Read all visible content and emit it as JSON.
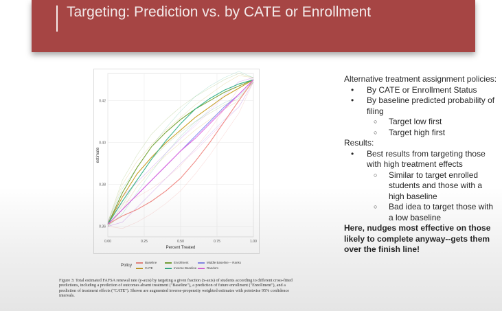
{
  "slide": {
    "title": "Targeting: Prediction vs. by CATE or Enrollment",
    "accent_color": "#a64544"
  },
  "figure": {
    "ylabel": "estimate",
    "xlabel": "Percent Treated",
    "x_ticks": [
      "0.00",
      "0.25",
      "0.50",
      "0.75",
      "1.00"
    ],
    "y_ticks": [
      "0.42",
      "0.40",
      "0.38",
      "0.36"
    ],
    "legend_title": "Policy",
    "legend": [
      {
        "label": "Baseline",
        "color": "#f08a85"
      },
      {
        "label": "CATE",
        "color": "#c9a12a"
      },
      {
        "label": "Enrollment",
        "color": "#7aa63a"
      },
      {
        "label": "Inverse Baseline",
        "color": "#39b38b"
      },
      {
        "label": "Middle Baseline -- Ranks",
        "color": "#8a8ef0"
      },
      {
        "label": "Random",
        "color": "#e06adf"
      }
    ],
    "caption": "Figure 3: Total estimated FAFSA renewal rate (y-axis) by targeting a given fraction (x-axis) of students according to different cross-fitted predictions, including a prediction of outcomes absent treatment (\"Baseline\"), a prediction of future enrollment (\"Enrollment\"), and a prediction of treatment effects (\"CATE\"). Shown are augmented inverse-propensity weighted estimates with pointwise 95% confidence intervals."
  },
  "chart_data": {
    "type": "line",
    "xlabel": "Percent Treated",
    "ylabel": "estimate",
    "xlim": [
      0,
      1
    ],
    "ylim": [
      0.355,
      0.433
    ],
    "grid": true,
    "legend_placement": "bottom",
    "x": [
      0,
      0.1,
      0.2,
      0.3,
      0.4,
      0.5,
      0.6,
      0.7,
      0.8,
      0.9,
      1.0
    ],
    "series": [
      {
        "name": "Baseline",
        "color": "#f08a85",
        "values": [
          0.361,
          0.365,
          0.368,
          0.372,
          0.377,
          0.383,
          0.391,
          0.4,
          0.41,
          0.42,
          0.43
        ]
      },
      {
        "name": "CATE",
        "color": "#c9a12a",
        "values": [
          0.361,
          0.374,
          0.385,
          0.393,
          0.4,
          0.406,
          0.412,
          0.417,
          0.422,
          0.426,
          0.43
        ]
      },
      {
        "name": "Enrollment",
        "color": "#7aa63a",
        "values": [
          0.361,
          0.376,
          0.388,
          0.398,
          0.405,
          0.411,
          0.416,
          0.42,
          0.424,
          0.427,
          0.43
        ]
      },
      {
        "name": "Inverse Baseline",
        "color": "#39b38b",
        "values": [
          0.361,
          0.372,
          0.382,
          0.392,
          0.401,
          0.409,
          0.416,
          0.421,
          0.425,
          0.428,
          0.43
        ]
      },
      {
        "name": "Middle Baseline -- Ranks",
        "color": "#8a8ef0",
        "values": [
          0.361,
          0.368,
          0.375,
          0.382,
          0.389,
          0.396,
          0.403,
          0.41,
          0.417,
          0.423,
          0.43
        ]
      },
      {
        "name": "Random",
        "color": "#e06adf",
        "values": [
          0.361,
          0.368,
          0.375,
          0.382,
          0.389,
          0.396,
          0.402,
          0.409,
          0.416,
          0.423,
          0.43
        ]
      }
    ]
  },
  "notes": {
    "heading": "Alternative treatment assignment policies:",
    "policies": [
      {
        "text": "By CATE or Enrollment Status",
        "sub": []
      },
      {
        "text": "By baseline predicted probability of filing",
        "sub": [
          "Target low first",
          "Target high first"
        ]
      }
    ],
    "results_heading": "Results:",
    "results": [
      {
        "text": "Best results from targeting those with high treatment effects",
        "sub": [
          "Similar to target enrolled students and those with a high baseline",
          "Bad idea to target those with a low baseline"
        ]
      }
    ],
    "conclusion": "Here, nudges most effective on those likely to complete anyway--gets them over the finish line!"
  }
}
